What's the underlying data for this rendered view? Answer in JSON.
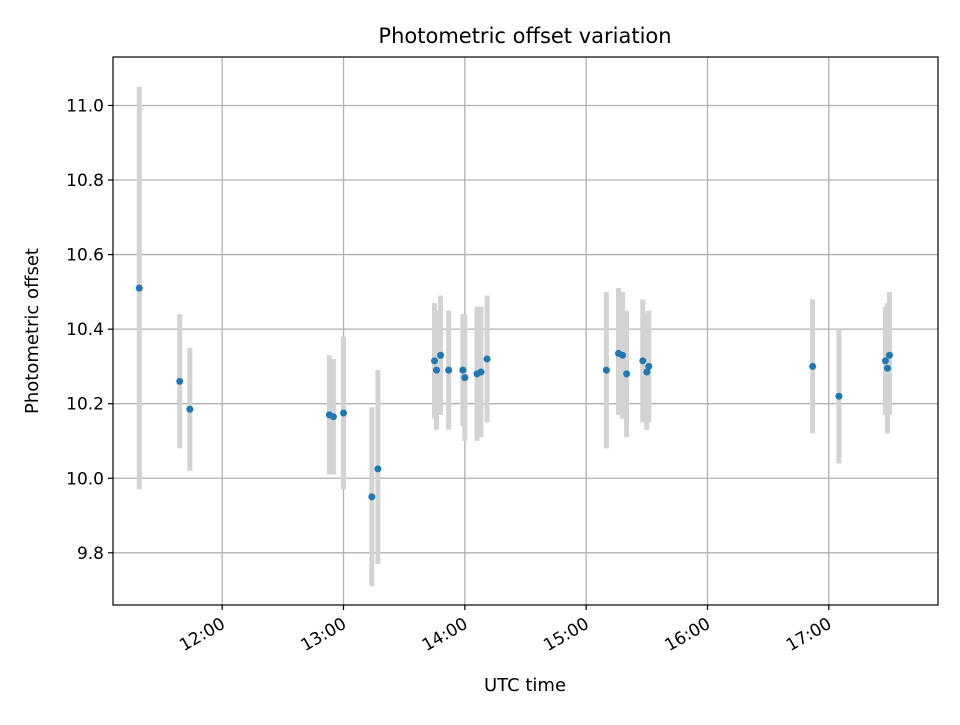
{
  "chart_data": {
    "type": "scatter",
    "title": "Photometric offset variation",
    "xlabel": "UTC time",
    "ylabel": "Photometric offset",
    "x_axis_kind": "time",
    "xlim": [
      "11:06",
      "17:54"
    ],
    "ylim": [
      9.66,
      11.13
    ],
    "xticks": [
      "12:00",
      "13:00",
      "14:00",
      "15:00",
      "16:00",
      "17:00"
    ],
    "yticks": [
      9.8,
      10.0,
      10.2,
      10.4,
      10.6,
      10.8,
      11.0
    ],
    "grid": true,
    "legend": "none",
    "colors": {
      "points": "#1f77b4",
      "errorbars": "#d3d3d3",
      "grid": "#b0b0b0"
    },
    "points": [
      {
        "x": "11:19",
        "y": 10.51,
        "low": 9.97,
        "high": 11.05
      },
      {
        "x": "11:39",
        "y": 10.26,
        "low": 10.08,
        "high": 10.44
      },
      {
        "x": "11:44",
        "y": 10.185,
        "low": 10.02,
        "high": 10.35
      },
      {
        "x": "12:53",
        "y": 10.17,
        "low": 10.01,
        "high": 10.33
      },
      {
        "x": "12:55",
        "y": 10.165,
        "low": 10.01,
        "high": 10.32
      },
      {
        "x": "13:00",
        "y": 10.175,
        "low": 9.97,
        "high": 10.38
      },
      {
        "x": "13:14",
        "y": 9.95,
        "low": 9.71,
        "high": 10.19
      },
      {
        "x": "13:17",
        "y": 10.025,
        "low": 9.77,
        "high": 10.29
      },
      {
        "x": "13:45",
        "y": 10.315,
        "low": 10.16,
        "high": 10.47
      },
      {
        "x": "13:46",
        "y": 10.29,
        "low": 10.13,
        "high": 10.45
      },
      {
        "x": "13:48",
        "y": 10.33,
        "low": 10.17,
        "high": 10.49
      },
      {
        "x": "13:52",
        "y": 10.29,
        "low": 10.13,
        "high": 10.45
      },
      {
        "x": "13:59",
        "y": 10.29,
        "low": 10.14,
        "high": 10.44
      },
      {
        "x": "14:00",
        "y": 10.27,
        "low": 10.1,
        "high": 10.44
      },
      {
        "x": "14:06",
        "y": 10.28,
        "low": 10.1,
        "high": 10.46
      },
      {
        "x": "14:08",
        "y": 10.285,
        "low": 10.11,
        "high": 10.46
      },
      {
        "x": "14:11",
        "y": 10.32,
        "low": 10.15,
        "high": 10.49
      },
      {
        "x": "15:10",
        "y": 10.29,
        "low": 10.08,
        "high": 10.5
      },
      {
        "x": "15:16",
        "y": 10.335,
        "low": 10.17,
        "high": 10.51
      },
      {
        "x": "15:18",
        "y": 10.33,
        "low": 10.16,
        "high": 10.5
      },
      {
        "x": "15:20",
        "y": 10.28,
        "low": 10.11,
        "high": 10.45
      },
      {
        "x": "15:28",
        "y": 10.315,
        "low": 10.15,
        "high": 10.48
      },
      {
        "x": "15:30",
        "y": 10.285,
        "low": 10.13,
        "high": 10.44
      },
      {
        "x": "15:31",
        "y": 10.3,
        "low": 10.15,
        "high": 10.45
      },
      {
        "x": "16:52",
        "y": 10.3,
        "low": 10.12,
        "high": 10.48
      },
      {
        "x": "17:05",
        "y": 10.22,
        "low": 10.04,
        "high": 10.4
      },
      {
        "x": "17:28",
        "y": 10.315,
        "low": 10.17,
        "high": 10.46
      },
      {
        "x": "17:29",
        "y": 10.295,
        "low": 10.12,
        "high": 10.47
      },
      {
        "x": "17:30",
        "y": 10.33,
        "low": 10.17,
        "high": 10.5
      }
    ]
  }
}
